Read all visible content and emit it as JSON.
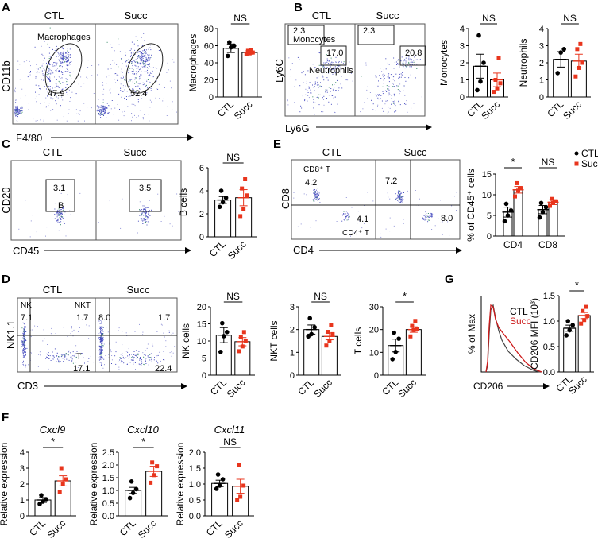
{
  "colors": {
    "ctl": "#000000",
    "succ": "#e8351d",
    "dots": "#4a4fc0",
    "hist_ctl": "#333333",
    "hist_succ": "#cc1b1b"
  },
  "flow": [
    {
      "panel": "A",
      "xlabel": "F4/80",
      "ylabel": "CD11b",
      "plots": [
        {
          "group": "CTL",
          "gates": [
            {
              "name": "Macrophages",
              "value": "47.9"
            }
          ]
        },
        {
          "group": "Succ",
          "gates": [
            {
              "name": "",
              "value": "52.4"
            }
          ]
        }
      ]
    },
    {
      "panel": "B",
      "xlabel": "Ly6G",
      "ylabel": "Ly6C",
      "plots": [
        {
          "group": "CTL",
          "gates": [
            {
              "name": "Monocytes",
              "value": "2.3"
            },
            {
              "name": "Neutrophils",
              "value": "17.0"
            }
          ]
        },
        {
          "group": "Succ",
          "gates": [
            {
              "name": "",
              "value": "2.3"
            },
            {
              "name": "",
              "value": "20.8"
            }
          ]
        }
      ]
    },
    {
      "panel": "C",
      "xlabel": "CD45",
      "ylabel": "CD20",
      "plots": [
        {
          "group": "CTL",
          "gates": [
            {
              "name": "B",
              "value": "3.1"
            }
          ]
        },
        {
          "group": "Succ",
          "gates": [
            {
              "name": "",
              "value": "3.5"
            }
          ]
        }
      ]
    },
    {
      "panel": "E",
      "xlabel": "CD4",
      "ylabel": "CD8",
      "plots": [
        {
          "group": "CTL",
          "gates": [
            {
              "name": "CD8⁺ T",
              "value": "4.2"
            },
            {
              "name": "CD4⁺ T",
              "value": "4.1"
            }
          ]
        },
        {
          "group": "Succ",
          "gates": [
            {
              "name": "",
              "value": "7.2"
            },
            {
              "name": "",
              "value": "8.0"
            }
          ]
        }
      ]
    },
    {
      "panel": "D",
      "xlabel": "CD3",
      "ylabel": "NK1.1",
      "plots": [
        {
          "group": "CTL",
          "gates": [
            {
              "name": "NK",
              "value": "7.1"
            },
            {
              "name": "NKT",
              "value": "1.7"
            },
            {
              "name": "T",
              "value": "17.1"
            }
          ]
        },
        {
          "group": "Succ",
          "gates": [
            {
              "name": "",
              "value": "8.0"
            },
            {
              "name": "",
              "value": "1.7"
            },
            {
              "name": "",
              "value": "22.4"
            }
          ]
        }
      ]
    }
  ],
  "histogram": {
    "panel": "G",
    "xlabel": "CD206",
    "ylabel": "% of Max",
    "legend": [
      "CTL",
      "Succ"
    ]
  },
  "chart_data": [
    {
      "id": "A_macrophages",
      "panel": "A",
      "type": "bar",
      "title": "",
      "ylabel": "Macrophages",
      "ylim": [
        0,
        80
      ],
      "yticks": [
        0,
        20,
        40,
        60,
        80
      ],
      "categories": [
        "CTL",
        "Succ"
      ],
      "means": [
        57,
        52
      ],
      "sem": [
        5,
        2
      ],
      "points": [
        [
          48,
          58,
          60,
          64
        ],
        [
          50,
          51,
          52,
          54,
          55
        ]
      ],
      "significance": "NS"
    },
    {
      "id": "B_monocytes",
      "panel": "B",
      "type": "bar",
      "title": "",
      "ylabel": "Monocytes",
      "ylim": [
        0,
        4
      ],
      "yticks": [
        0,
        1,
        2,
        3,
        4
      ],
      "categories": [
        "CTL",
        "Succ"
      ],
      "means": [
        1.8,
        1.0
      ],
      "sem": [
        0.7,
        0.4
      ],
      "points": [
        [
          0.4,
          0.9,
          2.0,
          3.6
        ],
        [
          0.3,
          0.5,
          0.8,
          1.0,
          2.3
        ]
      ],
      "significance": "NS"
    },
    {
      "id": "B_neutrophils",
      "panel": "B",
      "type": "bar",
      "title": "",
      "ylabel": "Neutrophils",
      "ylim": [
        0,
        4
      ],
      "yticks": [
        0,
        1,
        2,
        3,
        4
      ],
      "categories": [
        "CTL",
        "Succ"
      ],
      "means": [
        2.2,
        2.1
      ],
      "sem": [
        0.45,
        0.4
      ],
      "points": [
        [
          1.4,
          2.6,
          2.8
        ],
        [
          1.2,
          1.7,
          2.0,
          2.8,
          3.1
        ]
      ],
      "significance": "NS"
    },
    {
      "id": "C_bcells",
      "panel": "C",
      "type": "bar",
      "title": "",
      "ylabel": "B cells",
      "ylim": [
        0,
        6
      ],
      "yticks": [
        0,
        2,
        4,
        6
      ],
      "categories": [
        "CTL",
        "Succ"
      ],
      "means": [
        3.2,
        3.4
      ],
      "sem": [
        0.3,
        0.7
      ],
      "points": [
        [
          2.6,
          3.0,
          3.4,
          4.0
        ],
        [
          1.8,
          2.4,
          3.6,
          4.2,
          5.0
        ]
      ],
      "significance": "NS"
    },
    {
      "id": "E_cd45",
      "panel": "E",
      "type": "bar",
      "title": "",
      "ylabel": "% of CD45⁺ cells",
      "ylim": [
        0,
        15
      ],
      "yticks": [
        0,
        5,
        10,
        15
      ],
      "categories": [
        "CD4",
        "CD8"
      ],
      "legend": [
        "CTL",
        "Succ"
      ],
      "series": [
        {
          "name": "CTL",
          "means": [
            5.8,
            6.4
          ],
          "sem": [
            1.2,
            1.0
          ],
          "points": [
            [
              3.6,
              5.0,
              6.2,
              7.8
            ],
            [
              4.5,
              5.8,
              7.0,
              8.0
            ]
          ]
        },
        {
          "name": "Succ",
          "means": [
            11.2,
            8.2
          ],
          "sem": [
            0.8,
            0.6
          ],
          "points": [
            [
              9.6,
              11.0,
              11.6,
              12.8
            ],
            [
              7.3,
              8.0,
              8.4,
              9.0
            ]
          ]
        }
      ],
      "significance": [
        "*",
        "NS"
      ]
    },
    {
      "id": "D_nk",
      "panel": "D",
      "type": "bar",
      "title": "",
      "ylabel": "NK cells",
      "ylim": [
        0,
        20
      ],
      "yticks": [
        0,
        5,
        10,
        15,
        20
      ],
      "categories": [
        "CTL",
        "Succ"
      ],
      "means": [
        11.7,
        9.8
      ],
      "sem": [
        2.2,
        1.2
      ],
      "points": [
        [
          6.8,
          11.4,
          12.6,
          15.2
        ],
        [
          7.0,
          8.4,
          10.0,
          11.2,
          12.6
        ]
      ],
      "significance": "NS"
    },
    {
      "id": "D_nkt",
      "panel": "D",
      "type": "bar",
      "title": "",
      "ylabel": "NKT cells",
      "ylim": [
        0,
        3
      ],
      "yticks": [
        0,
        1,
        2,
        3
      ],
      "categories": [
        "CTL",
        "Succ"
      ],
      "means": [
        2.0,
        1.7
      ],
      "sem": [
        0.2,
        0.15
      ],
      "points": [
        [
          1.7,
          1.8,
          2.1,
          2.5
        ],
        [
          1.3,
          1.5,
          1.8,
          1.9,
          2.2
        ]
      ],
      "significance": "NS"
    },
    {
      "id": "D_tcells",
      "panel": "D",
      "type": "bar",
      "title": "",
      "ylabel": "T cells",
      "ylim": [
        0,
        30
      ],
      "yticks": [
        0,
        10,
        20,
        30
      ],
      "categories": [
        "CTL",
        "Succ"
      ],
      "means": [
        13,
        20
      ],
      "sem": [
        2.8,
        1.2
      ],
      "points": [
        [
          7.0,
          10.2,
          16.0,
          18.6
        ],
        [
          17.0,
          19.8,
          20.4,
          21.6,
          23.8
        ]
      ],
      "significance": "*"
    },
    {
      "id": "G_cd206",
      "panel": "G",
      "type": "bar",
      "title": "",
      "ylabel": "CD206 MFI (10³)",
      "ylim": [
        0,
        1.5
      ],
      "yticks": [
        0.0,
        0.5,
        1.0,
        1.5
      ],
      "categories": [
        "CTL",
        "Succ"
      ],
      "means": [
        0.86,
        1.11
      ],
      "sem": [
        0.06,
        0.06
      ],
      "points": [
        [
          0.72,
          0.82,
          0.92,
          1.0
        ],
        [
          0.95,
          1.02,
          1.1,
          1.2,
          1.28
        ]
      ],
      "significance": "*"
    },
    {
      "id": "F_cxcl9",
      "panel": "F",
      "type": "bar",
      "title": "Cxcl9",
      "ylabel": "Relative expression",
      "ylim": [
        0,
        4
      ],
      "yticks": [
        0,
        1,
        2,
        3,
        4
      ],
      "categories": [
        "CTL",
        "Succ"
      ],
      "means": [
        1.0,
        2.2
      ],
      "sem": [
        0.15,
        0.32
      ],
      "points": [
        [
          0.75,
          0.9,
          1.05,
          1.3
        ],
        [
          1.5,
          2.0,
          2.3,
          3.0
        ]
      ],
      "significance": "*"
    },
    {
      "id": "F_cxcl10",
      "panel": "F",
      "type": "bar",
      "title": "Cxcl10",
      "ylabel": "Relative expression",
      "ylim": [
        0,
        2.5
      ],
      "yticks": [
        0.0,
        0.5,
        1.0,
        1.5,
        2.0,
        2.5
      ],
      "categories": [
        "CTL",
        "Succ"
      ],
      "means": [
        1.0,
        1.75
      ],
      "sem": [
        0.12,
        0.2
      ],
      "points": [
        [
          0.7,
          0.9,
          1.05,
          1.35
        ],
        [
          1.3,
          1.6,
          1.95,
          2.1
        ]
      ],
      "significance": "*"
    },
    {
      "id": "F_cxcl11",
      "panel": "F",
      "type": "bar",
      "title": "Cxcl11",
      "ylabel": "Relative expression",
      "ylim": [
        0,
        2.0
      ],
      "yticks": [
        0.0,
        0.5,
        1.0,
        1.5,
        2.0
      ],
      "categories": [
        "CTL",
        "Succ"
      ],
      "means": [
        1.02,
        0.93
      ],
      "sem": [
        0.1,
        0.22
      ],
      "points": [
        [
          0.85,
          0.95,
          1.15,
          1.3
        ],
        [
          0.5,
          0.6,
          0.95,
          1.6
        ]
      ],
      "significance": "NS"
    }
  ]
}
